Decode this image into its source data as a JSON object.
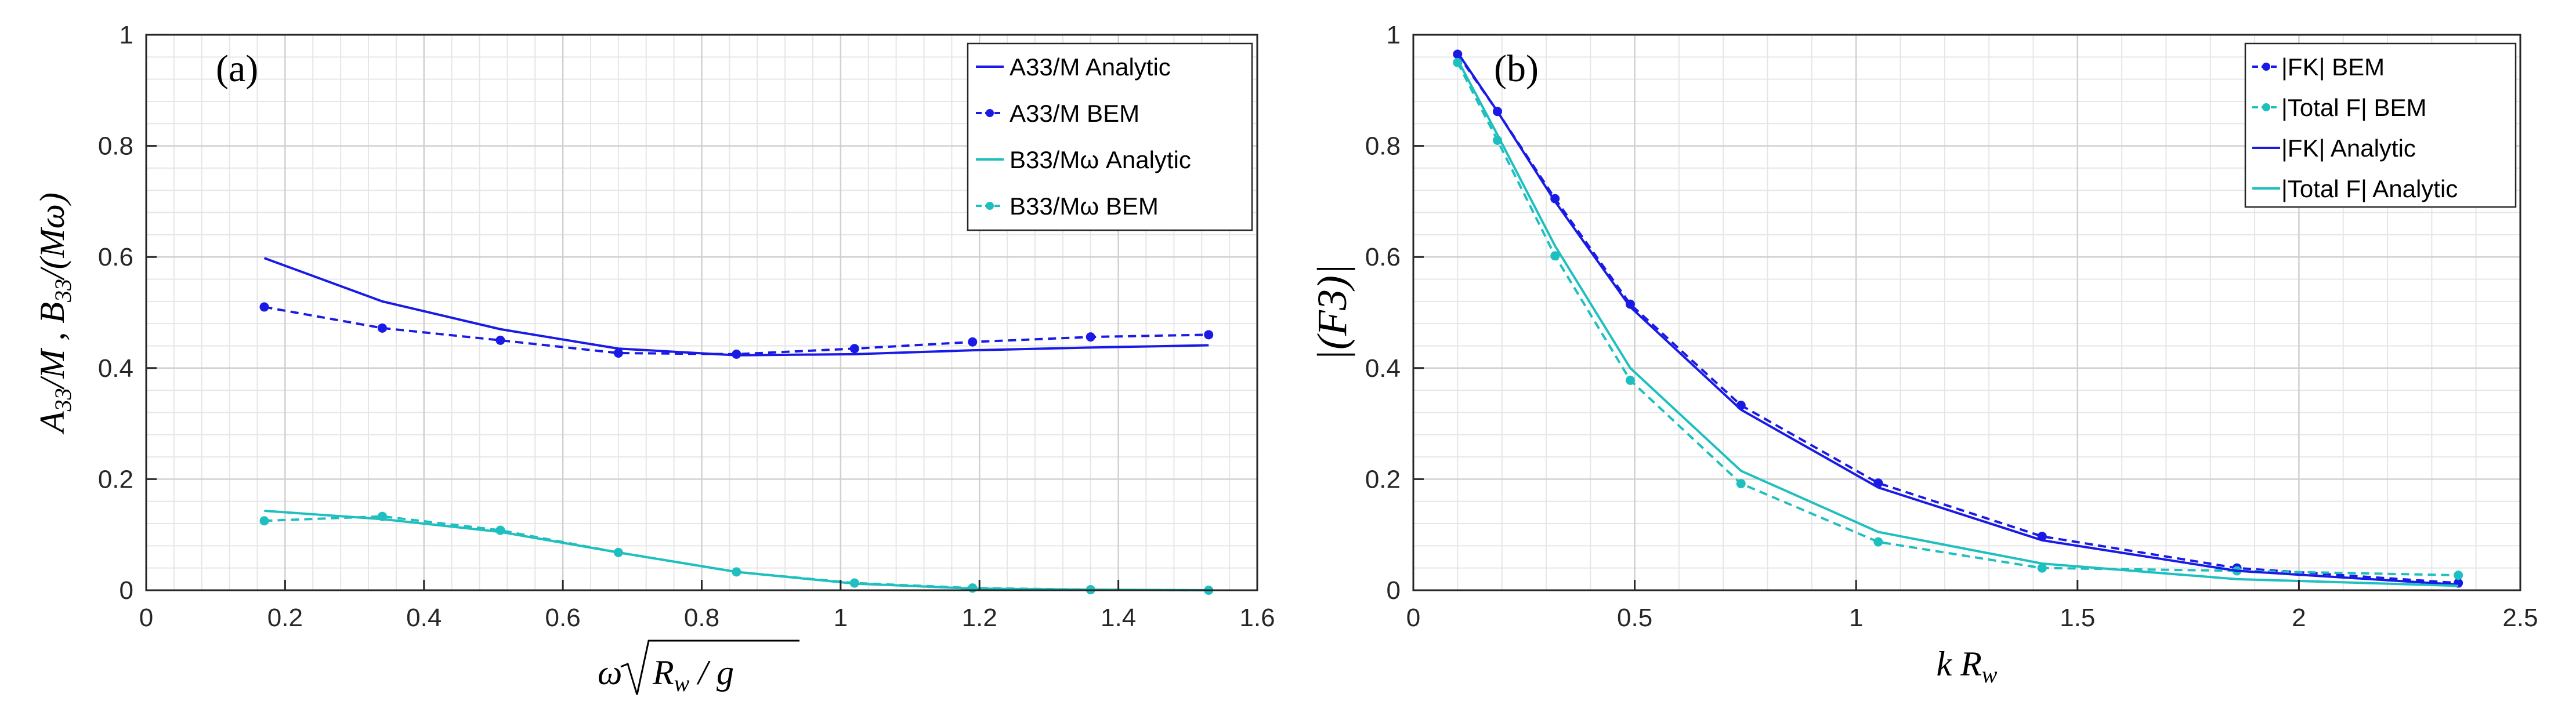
{
  "chart_data": [
    {
      "type": "line",
      "panel_label": "(a)",
      "xlim": [
        0,
        1.6
      ],
      "ylim": [
        0,
        1
      ],
      "xticks": [
        0,
        0.2,
        0.4,
        0.6,
        0.8,
        1,
        1.2,
        1.4,
        1.6
      ],
      "yticks": [
        0,
        0.2,
        0.4,
        0.6,
        0.8,
        1
      ],
      "xtick_labels": [
        "0",
        "0.2",
        "0.4",
        "0.6",
        "0.8",
        "1",
        "1.2",
        "1.4",
        "1.6"
      ],
      "ytick_labels": [
        "0",
        "0.2",
        "0.4",
        "0.6",
        "0.8",
        "1"
      ],
      "xlabel": "ω√(Rw / g)",
      "ylabel": "A33/M ,  B33/(Mω)",
      "grid": true,
      "legend_position": "top-right",
      "series": [
        {
          "name": "A33/M Analytic",
          "color": "#1a1ae6",
          "style": "solid",
          "marker": false,
          "x": [
            0.17,
            0.34,
            0.51,
            0.68,
            0.85,
            1.02,
            1.19,
            1.36,
            1.53
          ],
          "y": [
            0.598,
            0.52,
            0.47,
            0.435,
            0.423,
            0.425,
            0.432,
            0.437,
            0.441
          ]
        },
        {
          "name": "A33/M BEM",
          "color": "#1a1ae6",
          "style": "dashed",
          "marker": true,
          "x": [
            0.17,
            0.34,
            0.51,
            0.68,
            0.85,
            1.02,
            1.19,
            1.36,
            1.53
          ],
          "y": [
            0.51,
            0.472,
            0.45,
            0.427,
            0.425,
            0.435,
            0.447,
            0.456,
            0.46
          ]
        },
        {
          "name": "B33/Mω Analytic",
          "color": "#1fbfbf",
          "style": "solid",
          "marker": false,
          "x": [
            0.17,
            0.34,
            0.51,
            0.68,
            0.85,
            1.02,
            1.19,
            1.36,
            1.53
          ],
          "y": [
            0.143,
            0.128,
            0.105,
            0.068,
            0.033,
            0.012,
            0.003,
            0.001,
            0.0
          ]
        },
        {
          "name": "B33/Mω BEM",
          "color": "#1fbfbf",
          "style": "dashed",
          "marker": true,
          "x": [
            0.17,
            0.34,
            0.51,
            0.68,
            0.85,
            1.02,
            1.19,
            1.36,
            1.53
          ],
          "y": [
            0.125,
            0.133,
            0.108,
            0.068,
            0.033,
            0.013,
            0.004,
            0.001,
            0.0
          ]
        }
      ]
    },
    {
      "type": "line",
      "panel_label": "(b)",
      "xlim": [
        0,
        2.5
      ],
      "ylim": [
        0,
        1
      ],
      "xticks": [
        0,
        0.5,
        1,
        1.5,
        2,
        2.5
      ],
      "yticks": [
        0,
        0.2,
        0.4,
        0.6,
        0.8,
        1
      ],
      "xtick_labels": [
        "0",
        "0.5",
        "1",
        "1.5",
        "2",
        "2.5"
      ],
      "ytick_labels": [
        "0",
        "0.2",
        "0.4",
        "0.6",
        "0.8",
        "1"
      ],
      "xlabel": "k Rw",
      "ylabel": "|(F3)|",
      "grid": true,
      "legend_position": "top-right",
      "series": [
        {
          "name": "|FK| BEM",
          "color": "#1a1ae6",
          "style": "dashed",
          "marker": true,
          "x": [
            0.1,
            0.19,
            0.32,
            0.49,
            0.74,
            1.05,
            1.42,
            1.86,
            2.36
          ],
          "y": [
            0.965,
            0.862,
            0.705,
            0.515,
            0.333,
            0.193,
            0.097,
            0.04,
            0.013
          ]
        },
        {
          "name": "|Total F| BEM",
          "color": "#1fbfbf",
          "style": "dashed",
          "marker": true,
          "x": [
            0.1,
            0.19,
            0.32,
            0.49,
            0.74,
            1.05,
            1.42,
            1.86,
            2.36
          ],
          "y": [
            0.95,
            0.81,
            0.602,
            0.378,
            0.192,
            0.087,
            0.04,
            0.035,
            0.027
          ]
        },
        {
          "name": "|FK| Analytic",
          "color": "#1a1ae6",
          "style": "solid",
          "marker": false,
          "x": [
            0.1,
            0.19,
            0.32,
            0.49,
            0.74,
            1.05,
            1.42,
            1.86,
            2.36
          ],
          "y": [
            0.968,
            0.862,
            0.7,
            0.51,
            0.325,
            0.185,
            0.09,
            0.035,
            0.01
          ]
        },
        {
          "name": "|Total F| Analytic",
          "color": "#1fbfbf",
          "style": "solid",
          "marker": false,
          "x": [
            0.1,
            0.19,
            0.32,
            0.49,
            0.74,
            1.05,
            1.42,
            1.86,
            2.36
          ],
          "y": [
            0.955,
            0.82,
            0.62,
            0.4,
            0.215,
            0.105,
            0.048,
            0.02,
            0.008
          ]
        }
      ]
    }
  ]
}
